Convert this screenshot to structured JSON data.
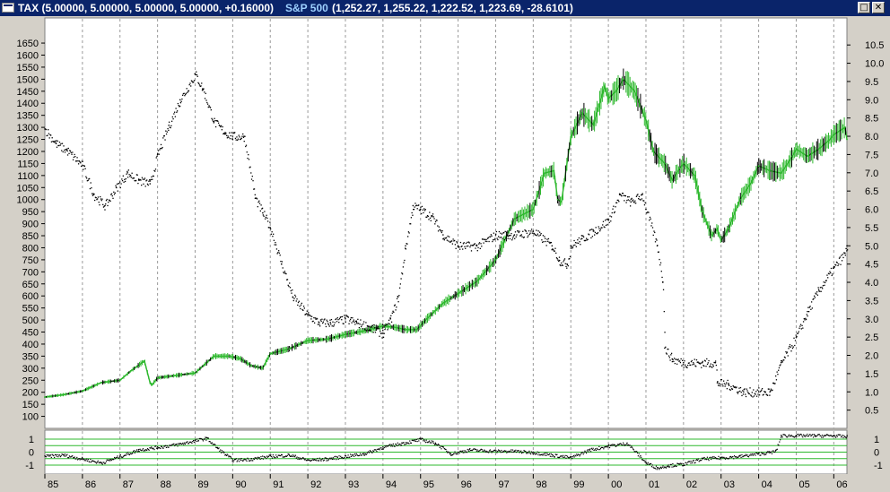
{
  "window": {
    "series1_label": "TAX (5.00000, 5.00000, 5.00000, 5.00000, +0.16000)",
    "series2_name": "S&P 500",
    "series2_values": "(1,252.27, 1,255.22, 1,222.52, 1,223.69, -28.6101)",
    "restore_glyph": "□",
    "close_glyph": "✕"
  },
  "colors": {
    "background": "#ffffff",
    "frame": "#d4d0c8",
    "sp500_up": "#2db82d",
    "sp500_down": "#000000",
    "tax_dots": "#000000",
    "vgrid": "#9a9a9a",
    "indicator_lines": "#2db82d"
  },
  "chart_data": [
    {
      "type": "line",
      "title": "",
      "x_tick_labels": [
        "85",
        "86",
        "87",
        "88",
        "89",
        "90",
        "91",
        "92",
        "93",
        "94",
        "95",
        "96",
        "97",
        "98",
        "99",
        "00",
        "01",
        "02",
        "03",
        "04",
        "05",
        "06"
      ],
      "x_range": [
        1985.0,
        2006.35
      ],
      "left_axis": {
        "ticks": [
          100,
          150,
          200,
          250,
          300,
          350,
          400,
          450,
          500,
          550,
          600,
          650,
          700,
          750,
          800,
          850,
          900,
          950,
          1000,
          1050,
          1100,
          1150,
          1200,
          1250,
          1300,
          1350,
          1400,
          1450,
          1500,
          1550,
          1600,
          1650
        ],
        "range": [
          50,
          1680
        ]
      },
      "right_axis": {
        "ticks": [
          "0.5",
          "1.0",
          "1.5",
          "2.0",
          "2.5",
          "3.0",
          "3.5",
          "4.0",
          "4.5",
          "5.0",
          "5.5",
          "6.0",
          "6.5",
          "7.0",
          "7.5",
          "8.0",
          "8.5",
          "9.0",
          "9.5",
          "10.0",
          "10.5"
        ],
        "range": [
          0.0,
          10.75
        ]
      },
      "grid": "vertical dashed at each year",
      "series": [
        {
          "name": "S&P 500",
          "axis": "left",
          "style": "green line",
          "x": [
            1985.0,
            1985.5,
            1986.0,
            1986.5,
            1987.0,
            1987.3,
            1987.65,
            1987.8,
            1987.85,
            1988.0,
            1988.5,
            1989.0,
            1989.5,
            1989.9,
            1990.2,
            1990.5,
            1990.8,
            1991.0,
            1991.5,
            1992.0,
            1992.5,
            1993.0,
            1993.5,
            1994.0,
            1994.3,
            1994.6,
            1994.9,
            1995.2,
            1995.6,
            1996.0,
            1996.5,
            1997.0,
            1997.5,
            1998.0,
            1998.3,
            1998.55,
            1998.65,
            1998.75,
            1999.0,
            1999.3,
            1999.6,
            1999.9,
            2000.0,
            2000.2,
            2000.4,
            2000.7,
            2001.0,
            2001.2,
            2001.5,
            2001.7,
            2001.9,
            2002.0,
            2002.3,
            2002.5,
            2002.75,
            2002.9,
            2003.0,
            2003.2,
            2003.5,
            2003.8,
            2004.0,
            2004.3,
            2004.6,
            2004.9,
            2005.0,
            2005.3,
            2005.6,
            2005.9,
            2006.0,
            2006.2,
            2006.3,
            2006.35
          ],
          "values": [
            180,
            190,
            205,
            240,
            250,
            290,
            330,
            240,
            230,
            260,
            270,
            280,
            350,
            350,
            340,
            310,
            300,
            360,
            380,
            415,
            420,
            440,
            455,
            475,
            470,
            460,
            460,
            510,
            570,
            610,
            660,
            750,
            920,
            960,
            1110,
            1120,
            1000,
            990,
            1260,
            1360,
            1310,
            1470,
            1420,
            1450,
            1500,
            1450,
            1330,
            1200,
            1150,
            1080,
            1130,
            1150,
            1100,
            950,
            850,
            880,
            830,
            880,
            1000,
            1070,
            1140,
            1120,
            1110,
            1180,
            1210,
            1180,
            1210,
            1250,
            1270,
            1290,
            1300,
            1250
          ]
        },
        {
          "name": "TAX",
          "axis": "right",
          "style": "black dots",
          "x": [
            1985.0,
            1985.3,
            1985.6,
            1986.0,
            1986.3,
            1986.6,
            1986.9,
            1987.2,
            1987.5,
            1987.8,
            1988.0,
            1988.3,
            1988.6,
            1989.0,
            1989.2,
            1989.5,
            1989.8,
            1990.0,
            1990.3,
            1990.6,
            1990.8,
            1991.0,
            1991.3,
            1991.6,
            1992.0,
            1992.3,
            1992.6,
            1993.0,
            1993.3,
            1993.6,
            1994.0,
            1994.2,
            1994.4,
            1994.6,
            1994.8,
            1995.0,
            1995.3,
            1995.6,
            1996.0,
            1996.5,
            1997.0,
            1997.5,
            1998.0,
            1998.5,
            1998.7,
            1998.9,
            1999.0,
            1999.3,
            1999.6,
            2000.0,
            2000.3,
            2000.6,
            2000.9,
            2001.0,
            2001.3,
            2001.45,
            2001.5,
            2001.7,
            2002.0,
            2002.5,
            2002.85,
            2002.9,
            2003.2,
            2003.6,
            2004.0,
            2004.3,
            2004.6,
            2005.0,
            2005.3,
            2005.6,
            2006.0,
            2006.3,
            2006.35
          ],
          "values": [
            8.2,
            7.8,
            7.6,
            7.2,
            6.4,
            6.1,
            6.6,
            7.0,
            6.8,
            6.7,
            7.5,
            8.3,
            9.0,
            9.7,
            9.3,
            8.4,
            8.1,
            8.0,
            8.0,
            6.3,
            5.9,
            5.5,
            4.5,
            3.6,
            3.1,
            2.9,
            2.9,
            3.0,
            2.9,
            2.8,
            2.6,
            3.0,
            3.6,
            5.0,
            6.1,
            6.0,
            5.8,
            5.3,
            5.0,
            5.0,
            5.3,
            5.3,
            5.4,
            5.0,
            4.6,
            4.5,
            5.0,
            5.2,
            5.4,
            5.7,
            6.4,
            6.2,
            6.4,
            6.0,
            5.0,
            4.0,
            2.2,
            1.9,
            1.8,
            1.8,
            1.8,
            1.25,
            1.2,
            1.0,
            1.0,
            1.0,
            1.8,
            2.5,
            3.2,
            3.8,
            4.4,
            4.8,
            5.0
          ]
        }
      ]
    },
    {
      "type": "line",
      "title": "",
      "y_ticks": [
        "1",
        "0",
        "-1"
      ],
      "reference_lines": [
        1,
        0.5,
        0,
        -0.5,
        -1
      ],
      "series": [
        {
          "name": "",
          "style": "black dots",
          "x": [
            1985.0,
            1985.5,
            1986.0,
            1986.5,
            1987.0,
            1987.5,
            1988.0,
            1988.5,
            1989.0,
            1989.3,
            1989.6,
            1990.0,
            1990.5,
            1991.0,
            1991.5,
            1992.0,
            1992.5,
            1993.0,
            1993.5,
            1994.0,
            1994.5,
            1995.0,
            1995.4,
            1995.8,
            1996.3,
            1997.0,
            1997.5,
            1998.0,
            1998.5,
            1999.0,
            1999.5,
            2000.0,
            2000.5,
            2001.0,
            2001.3,
            2001.6,
            2002.0,
            2002.5,
            2003.0,
            2003.5,
            2004.0,
            2004.3,
            2004.45,
            2004.6,
            2005.0,
            2005.5,
            2006.0,
            2006.35
          ],
          "values": [
            -0.3,
            -0.2,
            -0.5,
            -0.8,
            -0.3,
            0.2,
            0.4,
            0.6,
            0.9,
            1.1,
            0.3,
            -0.6,
            -0.5,
            -0.3,
            -0.2,
            -0.6,
            -0.5,
            -0.3,
            -0.1,
            0.4,
            0.7,
            1.0,
            0.7,
            -0.1,
            0.2,
            0.1,
            0.1,
            0.0,
            -0.2,
            -0.4,
            0.2,
            0.5,
            0.7,
            -0.8,
            -1.2,
            -1.0,
            -0.9,
            -0.5,
            -0.4,
            -0.3,
            -0.1,
            0.0,
            0.1,
            1.3,
            1.3,
            1.3,
            1.3,
            1.2
          ]
        }
      ]
    }
  ]
}
